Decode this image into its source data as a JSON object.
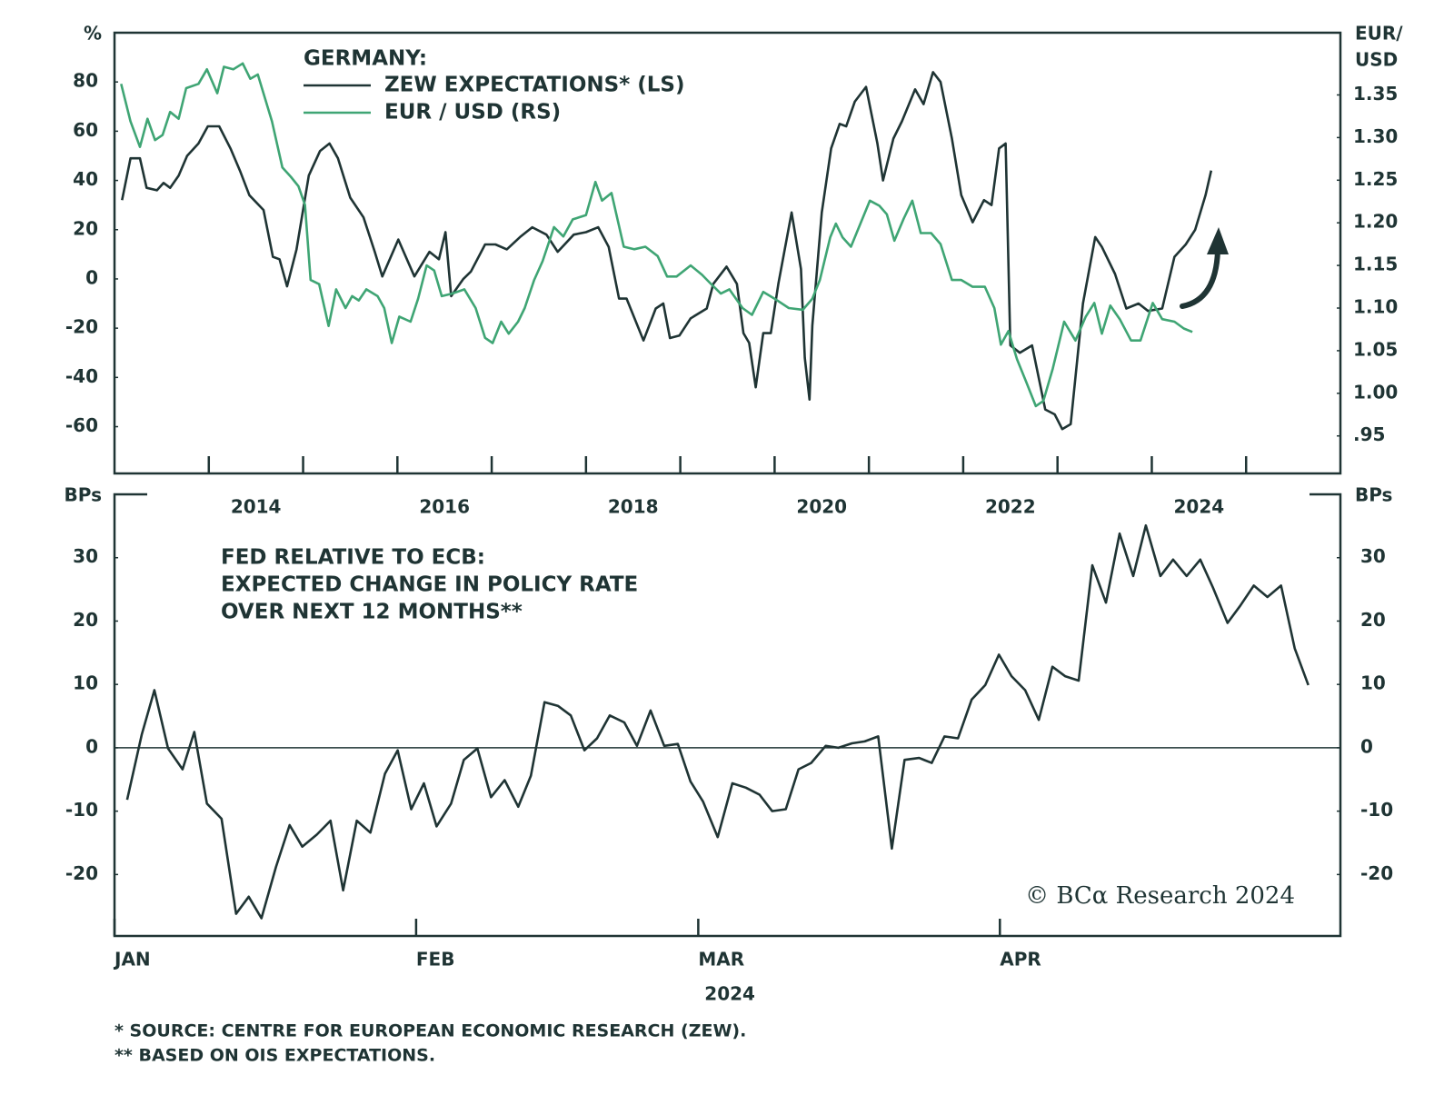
{
  "chart_data": [
    {
      "type": "line",
      "ylabel": "%",
      "y2label": [
        "EUR/",
        "USD"
      ],
      "legend_title": "GERMANY:",
      "xlim": [
        2013,
        2026
      ],
      "xticks": [
        2014,
        2015,
        2016,
        2017,
        2018,
        2019,
        2020,
        2021,
        2022,
        2023,
        2024,
        2025
      ],
      "xlabels": [
        {
          "value": 2014.5,
          "label": "2014"
        },
        {
          "value": 2016.5,
          "label": "2016"
        },
        {
          "value": 2018.5,
          "label": "2018"
        },
        {
          "value": 2020.5,
          "label": "2020"
        },
        {
          "value": 2022.5,
          "label": "2022"
        },
        {
          "value": 2024.5,
          "label": "2024"
        }
      ],
      "ylim": [
        -79,
        100
      ],
      "yticks": [
        -60,
        -40,
        -20,
        0,
        20,
        40,
        60,
        80
      ],
      "y2lim": [
        0.906,
        1.423
      ],
      "y2ticks": [
        {
          "value": 0.95,
          "label": ".95"
        },
        {
          "value": 1,
          "label": "1.00"
        },
        1.05,
        {
          "value": 1.1,
          "label": "1.10"
        },
        1.15,
        {
          "value": 1.2,
          "label": "1.20"
        },
        1.25,
        {
          "value": 1.3,
          "label": "1.30"
        },
        1.35
      ],
      "series": [
        {
          "name": "ZEW EXPECTATIONS* (LS)",
          "color": "#1f3434",
          "x": [
            2013.08,
            2013.17,
            2013.27,
            2013.34,
            2013.45,
            2013.52,
            2013.59,
            2013.68,
            2013.77,
            2013.89,
            2013.99,
            2014.11,
            2014.23,
            2014.33,
            2014.43,
            2014.58,
            2014.68,
            2014.75,
            2014.83,
            2014.93,
            2015.06,
            2015.18,
            2015.28,
            2015.37,
            2015.5,
            2015.64,
            2015.76,
            2015.84,
            2016.01,
            2016.18,
            2016.34,
            2016.44,
            2016.51,
            2016.57,
            2016.7,
            2016.78,
            2016.93,
            2017.04,
            2017.16,
            2017.3,
            2017.43,
            2017.58,
            2017.7,
            2017.87,
            2018.0,
            2018.13,
            2018.24,
            2018.35,
            2018.43,
            2018.61,
            2018.74,
            2018.82,
            2018.89,
            2018.99,
            2019.11,
            2019.28,
            2019.35,
            2019.49,
            2019.6,
            2019.67,
            2019.73,
            2019.8,
            2019.88,
            2019.96,
            2020.04,
            2020.18,
            2020.28,
            2020.32,
            2020.37,
            2020.4,
            2020.5,
            2020.6,
            2020.69,
            2020.76,
            2020.85,
            2020.97,
            2021.09,
            2021.15,
            2021.26,
            2021.35,
            2021.49,
            2021.58,
            2021.68,
            2021.76,
            2021.88,
            2021.98,
            2022.1,
            2022.22,
            2022.3,
            2022.38,
            2022.45,
            2022.5,
            2022.6,
            2022.73,
            2022.87,
            2022.97,
            2023.05,
            2023.14,
            2023.27,
            2023.4,
            2023.47,
            2023.61,
            2023.73,
            2023.86,
            2023.96,
            2024.11,
            2024.24,
            2024.36,
            2024.46,
            2024.57,
            2024.63
          ],
          "values": [
            32,
            49,
            49,
            37,
            36,
            39,
            37,
            42,
            50,
            55,
            62,
            62,
            53,
            44,
            34,
            28,
            9,
            8,
            -3,
            12,
            42,
            52,
            55,
            49,
            33,
            25,
            11,
            1,
            16,
            1,
            11,
            8,
            19,
            -7,
            0,
            3,
            14,
            14,
            12,
            17,
            21,
            18,
            11,
            18,
            19,
            21,
            13,
            -8,
            -8,
            -25,
            -12,
            -10,
            -24,
            -23,
            -16,
            -12,
            -2,
            5,
            -2,
            -22,
            -26,
            -44,
            -22,
            -22,
            -2,
            27,
            4,
            -32,
            -49,
            -19,
            27,
            53,
            63,
            62,
            72,
            78,
            55,
            40,
            57,
            64,
            77,
            71,
            84,
            80,
            57,
            34,
            23,
            32,
            30,
            53,
            55,
            -27,
            -30,
            -27,
            -53,
            -55,
            -61,
            -59,
            -10,
            17,
            13,
            2,
            -12,
            -10,
            -13,
            -12,
            9,
            14,
            20,
            34,
            44
          ]
        },
        {
          "name": "EUR / USD (RS)",
          "color": "#3fa574",
          "axis": "y2",
          "x": [
            2013.07,
            2013.17,
            2013.27,
            2013.35,
            2013.43,
            2013.51,
            2013.59,
            2013.68,
            2013.76,
            2013.89,
            2013.98,
            2014.09,
            2014.16,
            2014.26,
            2014.36,
            2014.44,
            2014.52,
            2014.67,
            2014.78,
            2014.87,
            2014.95,
            2015.02,
            2015.08,
            2015.17,
            2015.27,
            2015.35,
            2015.45,
            2015.52,
            2015.59,
            2015.67,
            2015.79,
            2015.86,
            2015.94,
            2016.02,
            2016.14,
            2016.22,
            2016.31,
            2016.39,
            2016.47,
            2016.58,
            2016.71,
            2016.83,
            2016.93,
            2017.01,
            2017.1,
            2017.18,
            2017.28,
            2017.35,
            2017.45,
            2017.54,
            2017.66,
            2017.76,
            2017.86,
            2018.0,
            2018.1,
            2018.17,
            2018.27,
            2018.4,
            2018.51,
            2018.63,
            2018.76,
            2018.86,
            2018.96,
            2019.11,
            2019.23,
            2019.31,
            2019.43,
            2019.52,
            2019.66,
            2019.76,
            2019.88,
            2020.0,
            2020.15,
            2020.3,
            2020.4,
            2020.48,
            2020.59,
            2020.65,
            2020.72,
            2020.81,
            2020.91,
            2021.01,
            2021.11,
            2021.19,
            2021.27,
            2021.37,
            2021.46,
            2021.55,
            2021.66,
            2021.76,
            2021.88,
            2021.98,
            2022.1,
            2022.23,
            2022.33,
            2022.4,
            2022.48,
            2022.57,
            2022.67,
            2022.77,
            2022.85,
            2022.95,
            2023.07,
            2023.19,
            2023.3,
            2023.39,
            2023.47,
            2023.56,
            2023.66,
            2023.78,
            2023.88,
            2024.01,
            2024.11,
            2024.24,
            2024.34,
            2024.43
          ],
          "values": [
            1.363,
            1.319,
            1.289,
            1.322,
            1.297,
            1.303,
            1.33,
            1.322,
            1.358,
            1.363,
            1.38,
            1.352,
            1.383,
            1.38,
            1.387,
            1.369,
            1.374,
            1.319,
            1.265,
            1.254,
            1.243,
            1.221,
            1.133,
            1.128,
            1.079,
            1.122,
            1.1,
            1.114,
            1.109,
            1.122,
            1.114,
            1.1,
            1.059,
            1.09,
            1.084,
            1.111,
            1.15,
            1.144,
            1.114,
            1.117,
            1.122,
            1.1,
            1.065,
            1.059,
            1.084,
            1.07,
            1.084,
            1.1,
            1.133,
            1.155,
            1.195,
            1.184,
            1.204,
            1.209,
            1.248,
            1.226,
            1.235,
            1.172,
            1.169,
            1.172,
            1.161,
            1.137,
            1.137,
            1.15,
            1.139,
            1.13,
            1.117,
            1.122,
            1.1,
            1.092,
            1.119,
            1.111,
            1.1,
            1.098,
            1.111,
            1.133,
            1.183,
            1.199,
            1.183,
            1.172,
            1.199,
            1.226,
            1.22,
            1.21,
            1.179,
            1.205,
            1.226,
            1.188,
            1.188,
            1.175,
            1.133,
            1.133,
            1.125,
            1.125,
            1.1,
            1.057,
            1.073,
            1.04,
            1.013,
            0.985,
            0.991,
            1.029,
            1.084,
            1.062,
            1.09,
            1.106,
            1.07,
            1.103,
            1.087,
            1.062,
            1.062,
            1.106,
            1.087,
            1.084,
            1.076,
            1.072
          ]
        }
      ]
    },
    {
      "type": "line",
      "title": [
        "FED RELATIVE TO ECB:",
        "EXPECTED CHANGE IN POLICY RATE",
        "OVER NEXT 12 MONTHS**"
      ],
      "ylabel": "BPs",
      "xlabel": "2024",
      "xlim": [
        0,
        126
      ],
      "xticks": [
        {
          "value": 0,
          "label": "JAN"
        },
        {
          "value": 31,
          "label": "FEB"
        },
        {
          "value": 60,
          "label": "MAR"
        },
        {
          "value": 91,
          "label": "APR"
        }
      ],
      "ylim": [
        -29.7,
        40
      ],
      "yticks": [
        -20,
        -10,
        0,
        10,
        20,
        30
      ],
      "hline": 0,
      "copyright": "© BCα Research 2024",
      "series": [
        {
          "color": "#1f3434",
          "x": [
            1.3,
            2.8,
            4.1,
            5.5,
            7.0,
            8.2,
            9.5,
            11.0,
            12.5,
            13.8,
            15.1,
            16.6,
            18.0,
            19.3,
            20.8,
            22.2,
            23.5,
            24.9,
            26.3,
            27.8,
            29.1,
            30.5,
            31.8,
            33.1,
            34.6,
            35.9,
            37.3,
            38.7,
            40.1,
            41.5,
            42.8,
            44.2,
            45.6,
            46.9,
            48.3,
            49.6,
            50.9,
            52.4,
            53.7,
            55.1,
            56.5,
            57.9,
            59.2,
            60.5,
            62.0,
            63.5,
            64.9,
            66.3,
            67.6,
            69.0,
            70.3,
            71.6,
            73.1,
            74.4,
            75.8,
            77.1,
            78.5,
            79.9,
            81.2,
            82.7,
            84.0,
            85.3,
            86.7,
            88.1,
            89.5,
            90.9,
            92.2,
            93.6,
            95.0,
            96.4,
            97.7,
            99.1,
            100.5,
            101.9,
            103.3,
            104.7,
            106.0,
            107.5,
            108.8,
            110.2,
            111.6,
            112.9,
            114.4,
            115.7,
            117.1,
            118.5,
            119.9,
            121.3,
            122.7
          ],
          "values": [
            -8.2,
            2.1,
            9.1,
            -0.1,
            -3.4,
            2.5,
            -8.8,
            -11.2,
            -26.2,
            -23.5,
            -26.9,
            -18.8,
            -12.2,
            -15.6,
            -13.7,
            -11.5,
            -22.5,
            -11.5,
            -13.4,
            -4.1,
            -0.4,
            -9.7,
            -5.6,
            -12.4,
            -8.8,
            -1.9,
            -0.1,
            -7.8,
            -5.1,
            -9.3,
            -4.4,
            7.2,
            6.6,
            5.1,
            -0.4,
            1.5,
            5.1,
            4.0,
            0.3,
            5.9,
            0.3,
            0.6,
            -5.3,
            -8.5,
            -14.1,
            -5.6,
            -6.3,
            -7.4,
            -10.0,
            -9.7,
            -3.4,
            -2.4,
            0.3,
            0,
            0.7,
            1.0,
            1.8,
            -15.9,
            -1.9,
            -1.6,
            -2.4,
            1.8,
            1.5,
            7.6,
            9.9,
            14.7,
            11.3,
            9.1,
            4.4,
            12.8,
            11.3,
            10.6,
            28.8,
            22.9,
            33.8,
            27.1,
            35.1,
            27.1,
            29.7,
            27.1,
            29.7,
            25.3,
            19.7,
            22.4,
            25.6,
            23.8,
            25.6,
            15.7,
            9.9
          ]
        }
      ]
    }
  ],
  "footnotes": [
    "*  SOURCE: CENTRE FOR EUROPEAN ECONOMIC RESEARCH (ZEW).",
    "** BASED ON OIS EXPECTATIONS."
  ]
}
